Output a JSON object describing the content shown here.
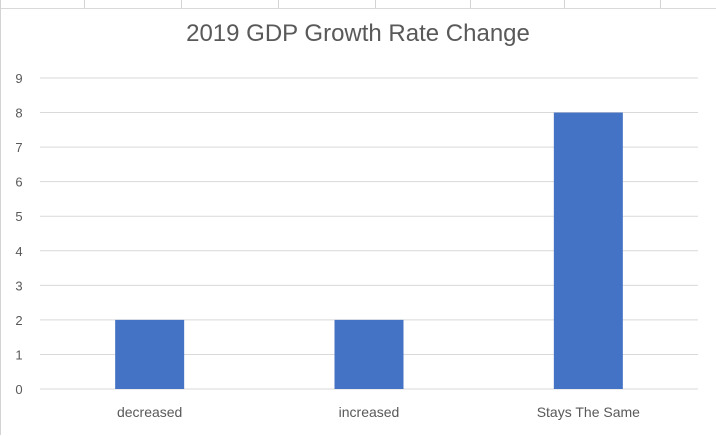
{
  "chart_data": {
    "type": "bar",
    "title": "2019 GDP Growth Rate Change",
    "xlabel": "",
    "ylabel": "",
    "categories": [
      "decreased",
      "increased",
      "Stays The Same"
    ],
    "values": [
      2,
      2,
      8
    ],
    "ylim": [
      0,
      9
    ],
    "yticks": [
      "0",
      "1",
      "2",
      "3",
      "4",
      "5",
      "6",
      "7",
      "8",
      "9"
    ],
    "grid": true,
    "legend": "none",
    "bar_color": "#4472C4",
    "gridline_color": "#d9d9d9",
    "text_color": "#595959"
  }
}
